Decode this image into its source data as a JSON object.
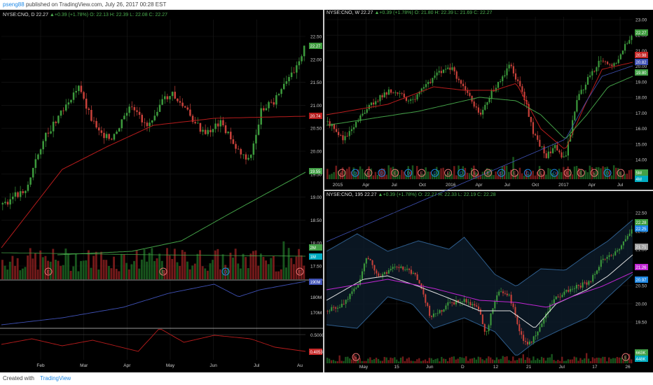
{
  "header": {
    "user": "pseng88",
    "published": "published on TradingView.com, July 26, 2017 00:28 EST"
  },
  "footer": {
    "created": "Created with",
    "brand": "TradingView"
  },
  "colors": {
    "bg": "#000000",
    "up": "#3c9a3c",
    "down": "#c8413a",
    "ma_red": "#b71c1c",
    "ma_green": "#43a047",
    "ma_blue": "#3f51b5",
    "band": "#2e5d8c",
    "white": "#e0e0e0",
    "magenta": "#c026d3"
  },
  "charts": [
    {
      "id": "daily",
      "legend": {
        "symbol": "NYSE:CNO, D",
        "price": "22.27",
        "change": "+0.39 (+1.78%)",
        "o": "O: 22.13",
        "h": "H: 22.39",
        "l": "L: 22.08",
        "c": "C: 22.27"
      },
      "yticks": [
        "22.50",
        "22.00",
        "21.50",
        "21.00",
        "20.50",
        "20.00",
        "19.50",
        "19.00",
        "18.50",
        "18.00",
        "17.50"
      ],
      "xticks": [
        "Feb",
        "Mar",
        "Apr",
        "May",
        "Jun",
        "Jul",
        "Au"
      ],
      "price_tags": [
        {
          "text": "22.27",
          "color": "#3c9a3c"
        },
        {
          "text": "20.74",
          "color": "#b71c1c"
        },
        {
          "text": "19.55",
          "color": "#43a047"
        },
        {
          "text": "2M",
          "color": "#43a047"
        },
        {
          "text": "1M",
          "color": "#00acc1"
        }
      ],
      "events": [
        "E",
        "E",
        "D",
        "E"
      ],
      "obv_ticks": [
        "190M",
        "180M",
        "170M"
      ],
      "obv_tag": "190M",
      "osc_ticks": [
        "0.5000"
      ],
      "osc_tag": "0.4053"
    },
    {
      "id": "weekly",
      "legend": {
        "symbol": "NYSE:CNO, W",
        "price": "22.27",
        "change": "+0.39 (+1.78%)",
        "o": "O: 21.80",
        "h": "H: 22.39",
        "l": "L: 21.69",
        "c": "C: 22.27"
      },
      "yticks": [
        "23.00",
        "22.00",
        "21.00",
        "20.00",
        "19.00",
        "18.00",
        "17.00",
        "16.00",
        "15.00",
        "14.00"
      ],
      "xticks": [
        "2015",
        "Apr",
        "Jul",
        "Oct",
        "2016",
        "Apr",
        "Jul",
        "Oct",
        "2017",
        "Apr",
        "Jul"
      ],
      "price_tags": [
        {
          "text": "22.27",
          "color": "#3c9a3c"
        },
        {
          "text": "20.98",
          "color": "#c62828"
        },
        {
          "text": "20.82",
          "color": "#3f51b5"
        },
        {
          "text": "19.80",
          "color": "#43a047"
        },
        {
          "text": "5M",
          "color": "#43a047"
        },
        {
          "text": "4M",
          "color": "#00acc1"
        }
      ],
      "events": [
        "E",
        "D",
        "E",
        "D",
        "E",
        "D",
        "E",
        "D",
        "E",
        "D",
        "E",
        "E",
        "D",
        "E",
        "D",
        "E",
        "D",
        "E",
        "E",
        "E",
        "D",
        "E"
      ]
    },
    {
      "id": "intraday",
      "legend": {
        "symbol": "NYSE:CNO, 195",
        "price": "22.27",
        "change": "+0.39 (+1.78%)",
        "o": "O: 22.27",
        "h": "H: 22.33",
        "l": "L: 22.19",
        "c": "C: 22.28"
      },
      "yticks": [
        "22.50",
        "22.00",
        "21.50",
        "21.00",
        "20.50",
        "20.00",
        "19.50"
      ],
      "xticks": [
        "May",
        "15",
        "Jun",
        "D",
        "12",
        "21",
        "Jul",
        "17",
        "26"
      ],
      "price_tags": [
        {
          "text": "22.28",
          "color": "#3c9a3c"
        },
        {
          "text": "22.25",
          "color": "#1e88e5"
        },
        {
          "text": "21.71",
          "color": "#9e9e9e"
        },
        {
          "text": "21.26",
          "color": "#c026d3"
        },
        {
          "text": "20.97",
          "color": "#1e88e5"
        },
        {
          "text": "663K",
          "color": "#43a047"
        },
        {
          "text": "448K",
          "color": "#00acc1"
        }
      ],
      "events": [
        "E",
        "E"
      ]
    }
  ]
}
